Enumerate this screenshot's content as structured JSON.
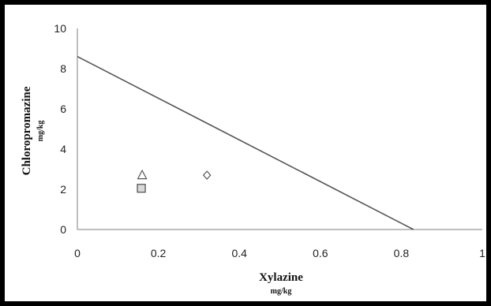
{
  "chart_data": {
    "type": "scatter",
    "xlabel": "Xylazine",
    "xunit": "mg/kg",
    "ylabel": "Chloropromazine",
    "yunit": "mg/kg",
    "xlim": [
      0,
      1
    ],
    "ylim": [
      0,
      10
    ],
    "xticks": [
      "0",
      "0.2",
      "0.4",
      "0.6",
      "0.8",
      "1"
    ],
    "xtick_values": [
      0,
      0.2,
      0.4,
      0.6,
      0.8,
      1
    ],
    "yticks": [
      "0",
      "2",
      "4",
      "6",
      "8",
      "10"
    ],
    "ytick_values": [
      0,
      2,
      4,
      6,
      8,
      10
    ],
    "grid": false,
    "line": {
      "x": [
        0,
        0.83
      ],
      "y": [
        8.6,
        0
      ],
      "color": "#555555"
    },
    "points": [
      {
        "marker": "square",
        "x": 0.158,
        "y": 2.05
      },
      {
        "marker": "triangle",
        "x": 0.16,
        "y": 2.7
      },
      {
        "marker": "diamond",
        "x": 0.32,
        "y": 2.7
      }
    ],
    "colors": {
      "frame": "#000000",
      "axis": "#7f7f7f",
      "marker_stroke": "#555555",
      "square_fill": "#d9d9d9"
    }
  }
}
